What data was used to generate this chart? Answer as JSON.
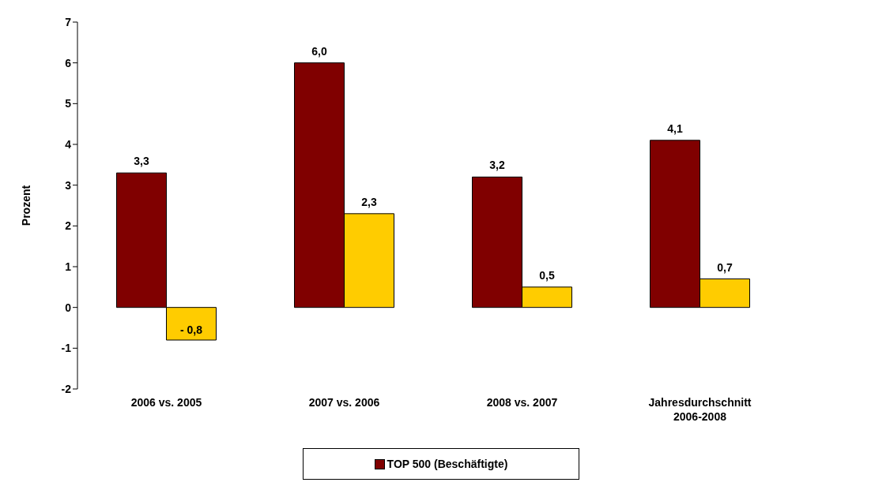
{
  "chart_data": {
    "type": "bar",
    "ylabel": "Prozent",
    "categories": [
      "2006 vs. 2005",
      "2007 vs. 2006",
      "2008 vs. 2007",
      "Jahresdurchschnitt 2006-2008"
    ],
    "series": [
      {
        "name": "TOP 500 (Beschäftigte)",
        "color": "#800000",
        "values": [
          3.3,
          6.0,
          3.2,
          4.1
        ],
        "value_labels": [
          "3,3",
          "6,0",
          "3,2",
          "4,1"
        ]
      },
      {
        "color": "#ffcc00",
        "values": [
          -0.8,
          2.3,
          0.5,
          0.7
        ],
        "value_labels": [
          "- 0,8",
          "2,3",
          "0,5",
          "0,7"
        ]
      }
    ],
    "ylim": [
      -2,
      7
    ],
    "yticks": [
      -2,
      -1,
      0,
      1,
      2,
      3,
      4,
      5,
      6,
      7
    ],
    "grid": false,
    "legend": "bottom"
  }
}
